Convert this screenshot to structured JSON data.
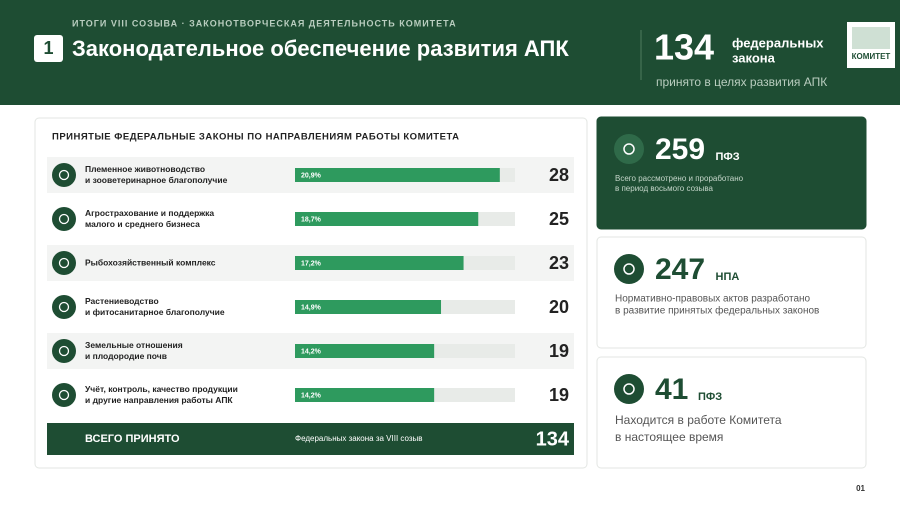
{
  "header": {
    "kicker": "ИТОГИ VIII СОЗЫВА · ЗАКОНОТВОРЧЕСКАЯ ДЕЯТЕЛЬНОСТЬ КОМИТЕТА",
    "number": "1",
    "title": "Законодательное обеспечение развития АПК",
    "total": 134,
    "total_unit": [
      "федеральных",
      "закона"
    ],
    "total_caption": "принято в целях развития АПК",
    "logo": "КОМИТЕТ"
  },
  "laws": {
    "title": "ПРИНЯТЫЕ ФЕДЕРАЛЬНЫЕ ЗАКОНЫ ПО НАПРАВЛЕНИЯМ РАБОТЫ КОМИТЕТА",
    "rows": [
      {
        "label": [
          "Племенное животноводство",
          "и зооветеринарное благополучие"
        ],
        "share": 20.9,
        "share_label": "20,9%",
        "count": 28
      },
      {
        "label": [
          "Агрострахование и поддержка",
          "малого и среднего бизнеса"
        ],
        "share": 18.7,
        "share_label": "18,7%",
        "count": 25
      },
      {
        "label": [
          "Рыбохозяйственный комплекс"
        ],
        "share": 17.2,
        "share_label": "17,2%",
        "count": 23
      },
      {
        "label": [
          "Растениеводство",
          "и фитосанитарное благополучие"
        ],
        "share": 14.9,
        "share_label": "14,9%",
        "count": 20
      },
      {
        "label": [
          "Земельные отношения",
          "и плодородие почв"
        ],
        "share": 14.2,
        "share_label": "14,2%",
        "count": 19
      },
      {
        "label": [
          "Учёт, контроль, качество продукции",
          "и другие направления работы АПК"
        ],
        "share": 14.2,
        "share_label": "14,2%",
        "count": 19
      }
    ],
    "total": {
      "label": "ВСЕГО ПРИНЯТО",
      "note": "Федеральных закона за VIII созыв",
      "value": 134
    }
  },
  "stats": [
    {
      "value": 259,
      "unit": "ПФЗ",
      "caption": [
        "Всего рассмотрено и проработано",
        "в период восьмого созыва"
      ]
    },
    {
      "value": 247,
      "unit": "НПА",
      "caption": [
        "Нормативно-правовых актов разработано",
        "в развитие принятых федеральных законов"
      ]
    },
    {
      "value": 41,
      "unit": "ПФЗ",
      "caption": [
        "Находится в работе Комитета",
        "в настоящее время"
      ]
    }
  ],
  "page": "01"
}
